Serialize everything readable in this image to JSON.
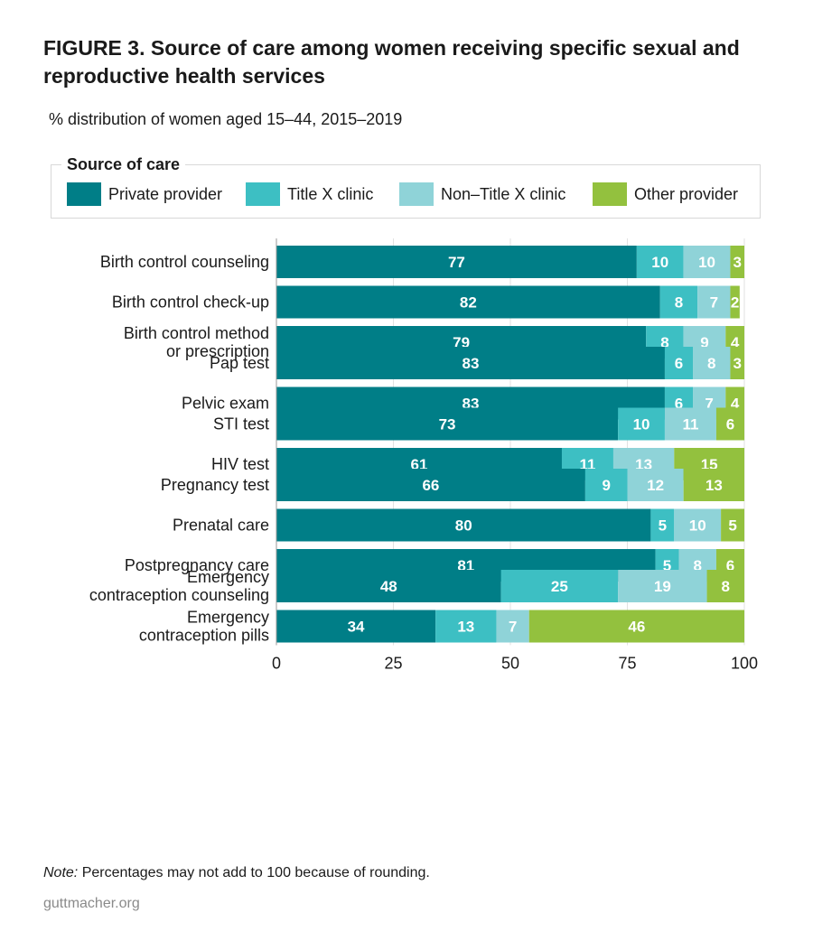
{
  "title": "FIGURE 3. Source of care among women receiving specific sexual and reproductive health services",
  "subtitle": "% distribution of women aged 15–44, 2015–2019",
  "legend": {
    "title": "Source of care",
    "items": [
      {
        "label": "Private provider",
        "color": "#007e87"
      },
      {
        "label": "Title X clinic",
        "color": "#3dbfc3"
      },
      {
        "label": "Non–Title X clinic",
        "color": "#8fd3d8"
      },
      {
        "label": "Other provider",
        "color": "#93c13e"
      }
    ]
  },
  "note_label": "Note:",
  "note_text": " Percentages may not add to 100 because of rounding.",
  "source": "guttmacher.org",
  "chart_data": {
    "type": "bar",
    "orientation": "horizontal",
    "stacked": true,
    "categories": [
      [
        "Birth control counseling"
      ],
      [
        "Birth control check-up"
      ],
      [
        "Birth control method",
        "or prescription"
      ],
      [
        "Pap test"
      ],
      [
        "Pelvic exam"
      ],
      [
        "STI test"
      ],
      [
        "HIV test"
      ],
      [
        "Pregnancy test"
      ],
      [
        "Prenatal care"
      ],
      [
        "Postpregnancy care"
      ],
      [
        "Emergency",
        "contraception counseling"
      ],
      [
        "Emergency",
        "contraception pills"
      ]
    ],
    "groups": [
      [
        0,
        1,
        2
      ],
      [
        3,
        4
      ],
      [
        5,
        6
      ],
      [
        7,
        8,
        9
      ],
      [
        10,
        11
      ]
    ],
    "series": [
      {
        "name": "Private provider",
        "color": "#007e87",
        "values": [
          77,
          82,
          79,
          83,
          83,
          73,
          61,
          66,
          80,
          81,
          48,
          34
        ]
      },
      {
        "name": "Title X clinic",
        "color": "#3dbfc3",
        "values": [
          10,
          8,
          8,
          6,
          6,
          10,
          11,
          9,
          5,
          5,
          25,
          13
        ]
      },
      {
        "name": "Non–Title X clinic",
        "color": "#8fd3d8",
        "values": [
          10,
          7,
          9,
          8,
          7,
          11,
          13,
          12,
          10,
          8,
          19,
          7
        ]
      },
      {
        "name": "Other provider",
        "color": "#93c13e",
        "values": [
          3,
          2,
          4,
          3,
          4,
          6,
          15,
          13,
          5,
          6,
          8,
          46
        ]
      }
    ],
    "xlim": [
      0,
      100
    ],
    "xticks": [
      0,
      25,
      50,
      75,
      100
    ],
    "grid": "vertical"
  }
}
